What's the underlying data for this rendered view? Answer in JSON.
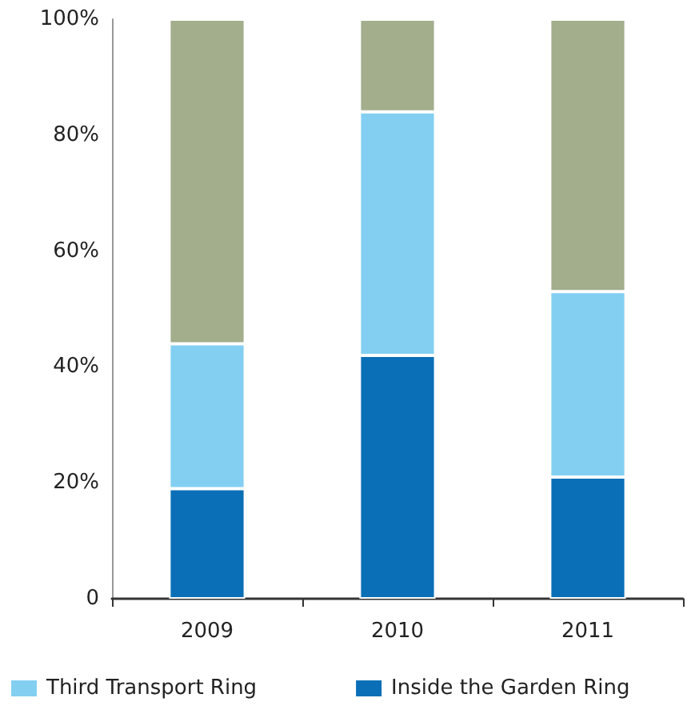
{
  "chart_data": {
    "type": "bar",
    "stacked": true,
    "categories": [
      "2009",
      "2010",
      "2011"
    ],
    "series": [
      {
        "name": "Inside the Garden Ring",
        "color": "#0a6fb7",
        "values": [
          19,
          42,
          21
        ]
      },
      {
        "name": "Third Transport Ring",
        "color": "#83cff2",
        "values": [
          25,
          42,
          32
        ]
      },
      {
        "color": "#a2ae8c",
        "values": [
          56,
          16,
          47
        ]
      }
    ],
    "ylim": [
      0,
      100
    ],
    "yticks": [
      0,
      {
        "value": 20,
        "label": "20%"
      },
      {
        "value": 40,
        "label": "40%"
      },
      {
        "value": 60,
        "label": "60%"
      },
      {
        "value": 80,
        "label": "80%"
      },
      {
        "value": 100,
        "label": "100%"
      }
    ],
    "grid": false,
    "legend": "bottom"
  }
}
